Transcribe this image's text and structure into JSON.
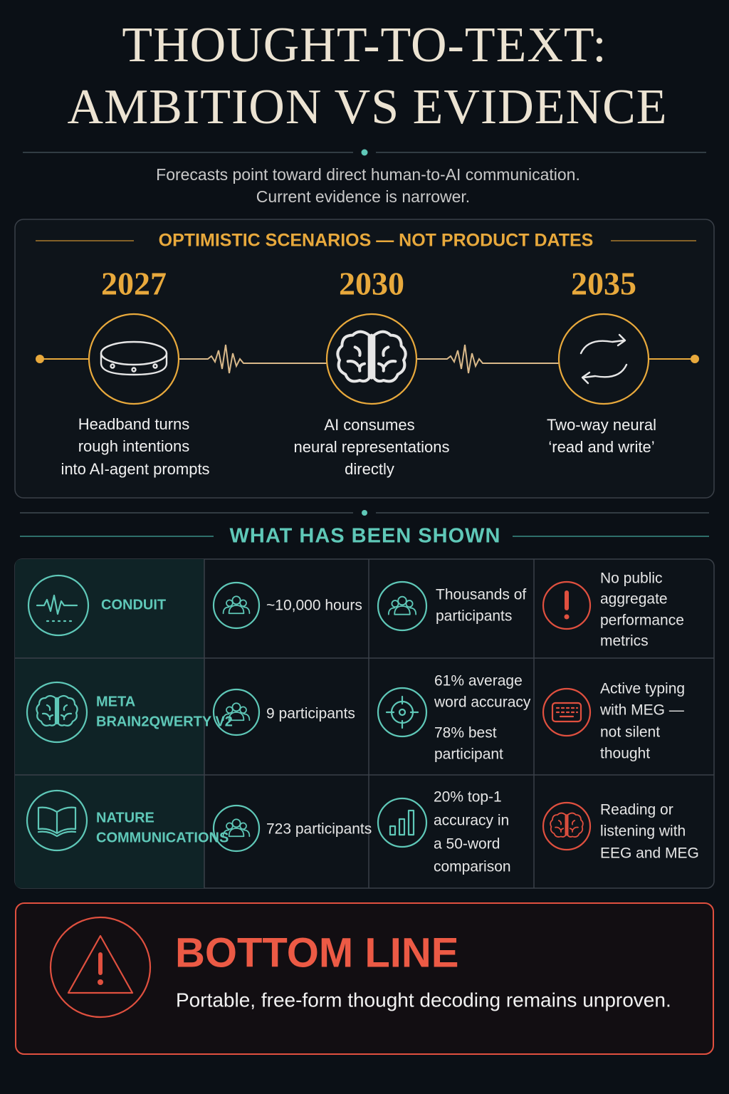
{
  "header": {
    "title_lines": [
      "THOUGHT-TO-TEXT:",
      "AMBITION VS EVIDENCE"
    ],
    "subtitle_lines": [
      "Forecasts point toward direct human-to-AI communication.",
      "Current evidence is narrower."
    ]
  },
  "timeline": {
    "heading": "OPTIMISTIC SCENARIOS — NOT PRODUCT DATES",
    "milestones": [
      {
        "year": "2027",
        "lines": [
          "Headband turns",
          "rough intentions",
          "into AI-agent prompts"
        ]
      },
      {
        "year": "2030",
        "lines": [
          "AI consumes",
          "neural representations",
          "directly"
        ]
      },
      {
        "year": "2035",
        "lines": [
          "Two-way neural",
          "‘read and write’"
        ]
      }
    ]
  },
  "evidence": {
    "heading": "WHAT HAS BEEN SHOWN",
    "rows": [
      {
        "source_lines": [
          "CONDUIT"
        ],
        "sample": "~10,000 hours",
        "result_lines": [
          "Thousands of",
          "participants"
        ],
        "caveat_lines": [
          "No public",
          "aggregate",
          "performance",
          "metrics"
        ]
      },
      {
        "source_lines": [
          "META",
          "BRAIN2QWERTY V2"
        ],
        "sample": "9 participants",
        "result_lines": [
          "61% average",
          "word accuracy",
          "78% best",
          "participant"
        ],
        "caveat_lines": [
          "Active typing",
          "with MEG —",
          "not silent",
          "thought"
        ]
      },
      {
        "source_lines": [
          "NATURE",
          "COMMUNICATIONS"
        ],
        "sample": "723 participants",
        "result_lines": [
          "20% top-1",
          "accuracy in",
          "a 50-word",
          "comparison"
        ],
        "caveat_lines": [
          "Reading or",
          "listening with",
          "EEG and MEG"
        ]
      }
    ]
  },
  "bottom_line": {
    "heading": "BOTTOM LINE",
    "text": "Portable, free-form thought decoding remains unproven."
  }
}
